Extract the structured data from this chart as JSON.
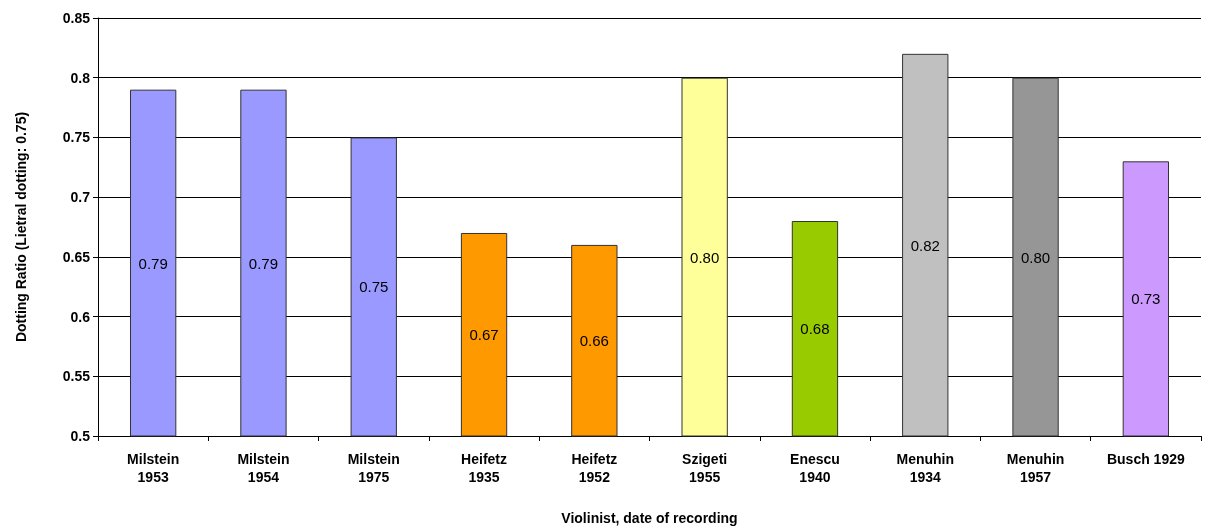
{
  "chart_data": {
    "type": "bar",
    "categories": [
      "Milstein\n1953",
      "Milstein\n1954",
      "Milstein\n1975",
      "Heifetz\n1935",
      "Heifetz\n1952",
      "Szigeti\n1955",
      "Enescu\n1940",
      "Menuhin\n1934",
      "Menuhin\n1957",
      "Busch 1929"
    ],
    "values": [
      0.79,
      0.79,
      0.75,
      0.67,
      0.66,
      0.8,
      0.68,
      0.82,
      0.8,
      0.73
    ],
    "value_labels": [
      "0.79",
      "0.79",
      "0.75",
      "0.67",
      "0.66",
      "0.80",
      "0.68",
      "0.82",
      "0.80",
      "0.73"
    ],
    "colors": [
      "#9999ff",
      "#9999ff",
      "#9999ff",
      "#ff9900",
      "#ff9900",
      "#ffff99",
      "#99cc00",
      "#c0c0c0",
      "#969696",
      "#cc99ff"
    ],
    "xlabel": "Violinist, date of recording",
    "ylabel": "Dotting Ratio (Lietral dotting: 0.75)",
    "ylim": [
      0.5,
      0.85
    ],
    "yticks": [
      0.5,
      0.55,
      0.6,
      0.65,
      0.7,
      0.75,
      0.8,
      0.85
    ],
    "grid": true
  }
}
